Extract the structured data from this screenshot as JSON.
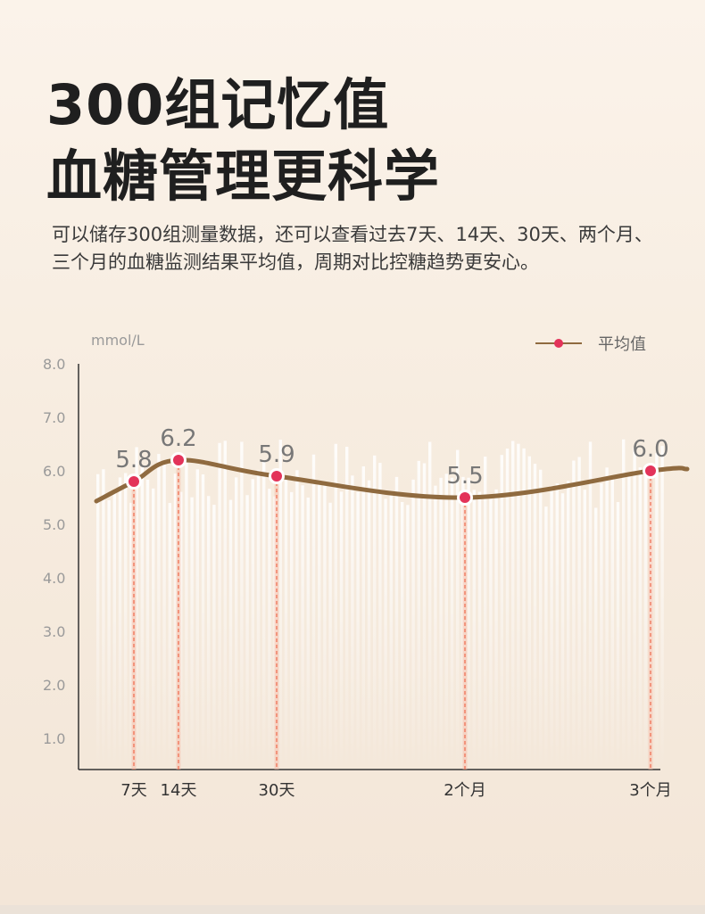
{
  "title": {
    "line1": "300组记忆值",
    "line2": "血糖管理更科学"
  },
  "description": "可以储存300组测量数据，还可以查看过去7天、14天、30天、两个月、三个月的血糖监测结果平均值，周期对比控糖趋势更安心。",
  "colors": {
    "curve": "#8f6a3f",
    "marker": "#e3335a",
    "dash": "#ef6a4d",
    "background_bar": "#ffffff"
  },
  "chart_data": {
    "type": "line",
    "ylabel": "mmol/L",
    "ylim": [
      0.5,
      8.0
    ],
    "y_ticks": [
      "8.0",
      "7.0",
      "6.0",
      "5.0",
      "4.0",
      "3.0",
      "2.0",
      "1.0"
    ],
    "legend": {
      "label": "平均值",
      "position": "top-right"
    },
    "series": [
      {
        "name": "平均值",
        "points": [
          {
            "label": "7天",
            "day": 7,
            "value": 5.8,
            "value_label": "5.8"
          },
          {
            "label": "14天",
            "day": 14,
            "value": 6.2,
            "value_label": "6.2"
          },
          {
            "label": "30天",
            "day": 30,
            "value": 5.9,
            "value_label": "5.9"
          },
          {
            "label": "2个月",
            "day": 60,
            "value": 5.5,
            "value_label": "5.5"
          },
          {
            "label": "3个月",
            "day": 90,
            "value": 6.0,
            "value_label": "6.0"
          }
        ]
      }
    ],
    "grid": false
  }
}
